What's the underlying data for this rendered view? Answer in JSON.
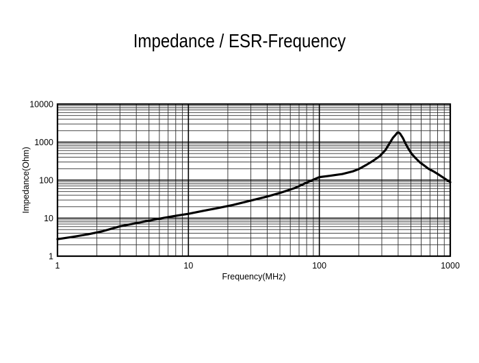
{
  "title": "Impedance / ESR-Frequency",
  "chart_data": {
    "type": "line",
    "title": "Impedance / ESR-Frequency",
    "xlabel": "Frequency(MHz)",
    "ylabel": "Impedance(Ohm)",
    "x_scale": "log",
    "y_scale": "log",
    "xlim": [
      1,
      1000
    ],
    "ylim": [
      1,
      10000
    ],
    "x_ticks": [
      "1",
      "10",
      "100",
      "1000"
    ],
    "y_ticks": [
      "1",
      "10",
      "100",
      "1000",
      "10000"
    ],
    "grid": {
      "major": true,
      "minor": true
    },
    "legend": "none",
    "colors": {
      "curve": "#000000",
      "grid_major": "#000000",
      "grid_minor": "#2b2b2b",
      "background": "#ffffff",
      "text": "#000000"
    },
    "series": [
      {
        "name": "Impedance",
        "x": [
          1,
          1.3,
          1.7,
          2.2,
          3,
          4,
          5,
          6.5,
          8,
          10,
          13,
          17,
          22,
          30,
          40,
          50,
          65,
          80,
          100,
          120,
          150,
          180,
          200,
          230,
          260,
          290,
          320,
          345,
          365,
          385,
          393,
          400,
          407,
          415,
          435,
          455,
          480,
          510,
          545,
          585,
          630,
          680,
          740,
          800,
          870,
          930,
          1000
        ],
        "y": [
          2.8,
          3.2,
          3.75,
          4.5,
          6.1,
          7.4,
          8.6,
          10.2,
          11.5,
          13,
          15.6,
          18.6,
          22.3,
          29,
          37,
          46,
          62,
          86,
          120,
          130,
          145,
          170,
          195,
          255,
          330,
          430,
          620,
          950,
          1300,
          1600,
          1760,
          1800,
          1760,
          1650,
          1280,
          920,
          660,
          480,
          375,
          295,
          245,
          200,
          172,
          146,
          121,
          104,
          88
        ]
      }
    ]
  }
}
